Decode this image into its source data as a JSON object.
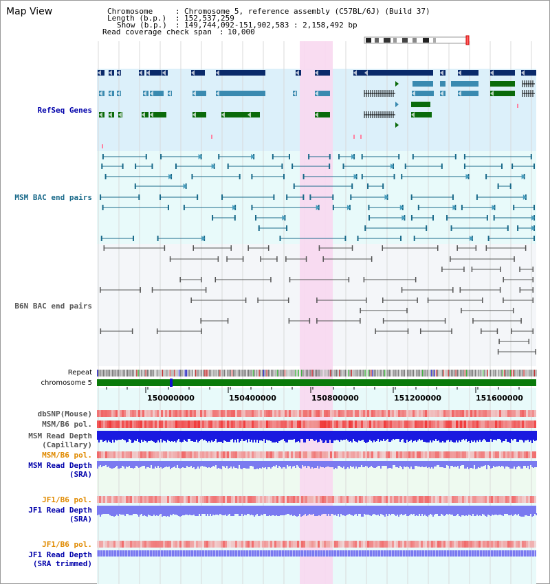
{
  "title": "Map View",
  "header": {
    "chromosome_key": "Chromosome",
    "chromosome_val": "Chromosome 5, reference assembly (C57BL/6J) (Build 37)",
    "length_key": "Length (b.p.)",
    "length_val": "152,537,259",
    "show_key": "Show (b.p.)",
    "show_val": "149,744,092-151,902,583 : 2,158,492 bp",
    "coverage_key": "Read coverage check span",
    "coverage_val": "10,000"
  },
  "tracks": {
    "refseq": "RefSeq Genes",
    "msm_bac": "MSM BAC end pairs",
    "b6n_bac": "B6N BAC end pairs",
    "repeat": "Repeat",
    "chromosome": "chromosome 5",
    "dbsnp": "dbSNP(Mouse)",
    "msm_b6_pol": "MSM/B6 pol.",
    "msm_depth_cap_1": "MSM Read Depth",
    "msm_depth_cap_2": "(Capillary)",
    "msm_b6_pol_2": "MSM/B6 pol.",
    "msm_depth_sra_1": "MSM Read Depth",
    "msm_depth_sra_2": "(SRA)",
    "jf1_b6_pol": "JF1/B6 pol.",
    "jf1_depth_sra_1": "JF1 Read Depth",
    "jf1_depth_sra_2": "(SRA)",
    "jf1_b6_pol_2": "JF1/B6 pol.",
    "jf1_depth_trim_1": "JF1 Read Depth",
    "jf1_depth_trim_2": "(SRA trimmed)"
  },
  "axis_ticks": [
    "150000000",
    "150400000",
    "150800000",
    "151200000",
    "151600000"
  ],
  "colors": {
    "refseq_bg": "#dcf0fa",
    "bac_bg": "#e8fafa",
    "highlight": "#f8d8f0",
    "gene_dark": "#0a2a6a",
    "gene_mid": "#3a8ab0",
    "gene_green": "#0a6a0a",
    "msm_line": "#1a6a8a",
    "b6n_line": "#555555",
    "chromosome": "#0a7a0a",
    "snp_red": "#e02020",
    "depth_blue": "#1a1ae0",
    "depth_light": "#7a7af0",
    "label_blue": "#0000aa",
    "label_orange": "#e08a00",
    "label_teal": "#1a6a8a",
    "label_gray": "#555555"
  }
}
